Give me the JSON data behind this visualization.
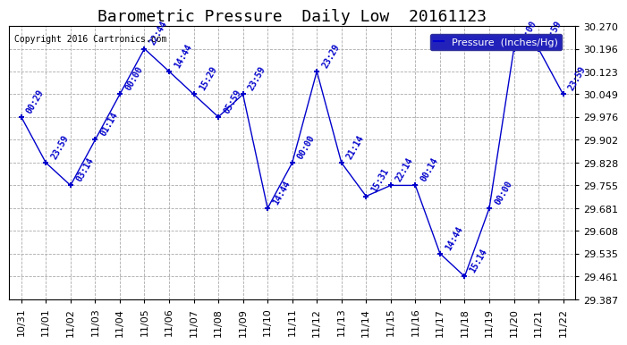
{
  "title": "Barometric Pressure  Daily Low  20161123",
  "copyright": "Copyright 2016 Cartronics.com",
  "legend_label": "Pressure  (Inches/Hg)",
  "background_color": "#ffffff",
  "plot_bg_color": "#ffffff",
  "line_color": "#0000cc",
  "text_color": "#0000cc",
  "grid_color": "#aaaaaa",
  "ylim": [
    29.387,
    30.27
  ],
  "yticks": [
    29.387,
    29.461,
    29.535,
    29.608,
    29.681,
    29.755,
    29.828,
    29.902,
    29.976,
    30.049,
    30.123,
    30.196,
    30.27
  ],
  "x_labels": [
    "10/31",
    "11/01",
    "11/02",
    "11/03",
    "11/04",
    "11/05",
    "11/06",
    "11/07",
    "11/08",
    "11/09",
    "11/10",
    "11/11",
    "11/12",
    "11/13",
    "11/14",
    "11/15",
    "11/16",
    "11/17",
    "11/18",
    "11/19",
    "11/20",
    "11/21",
    "11/22"
  ],
  "x_indices": [
    0,
    1,
    2,
    3,
    4,
    5,
    6,
    7,
    8,
    9,
    10,
    11,
    12,
    13,
    14,
    15,
    16,
    17,
    18,
    19,
    20,
    21,
    22
  ],
  "y_values": [
    29.976,
    29.828,
    29.755,
    29.902,
    30.049,
    30.196,
    30.123,
    30.049,
    29.976,
    30.049,
    29.681,
    29.828,
    30.123,
    29.828,
    29.72,
    29.755,
    29.755,
    29.535,
    29.461,
    29.681,
    30.196,
    30.196,
    30.049
  ],
  "time_labels": [
    "00:29",
    "23:59",
    "03:14",
    "01:14",
    "00:00",
    "22:44",
    "14:44",
    "15:29",
    "05:59",
    "23:59",
    "14:44",
    "00:00",
    "23:29",
    "21:14",
    "15:31",
    "22:14",
    "00:14",
    "14:44",
    "15:14",
    "00:00",
    "23:00",
    "14:59",
    "23:59"
  ],
  "title_fontsize": 13,
  "tick_fontsize": 8,
  "label_fontsize": 7,
  "legend_fontsize": 8,
  "copyright_fontsize": 7
}
